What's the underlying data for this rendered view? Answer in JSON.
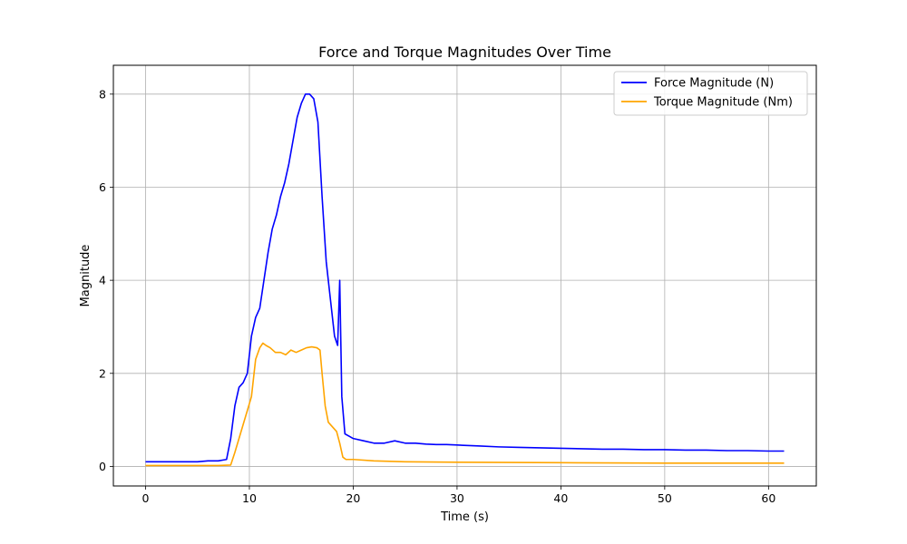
{
  "chart_data": {
    "type": "line",
    "title": "Force and Torque Magnitudes Over Time",
    "xlabel": "Time (s)",
    "ylabel": "Magnitude",
    "xlim": [
      -3.1,
      64.6
    ],
    "ylim": [
      -0.42,
      8.62
    ],
    "xticks": [
      0,
      10,
      20,
      30,
      40,
      50,
      60
    ],
    "yticks": [
      0,
      2,
      4,
      6,
      8
    ],
    "grid": true,
    "legend_position": "top-right",
    "series": [
      {
        "name": "Force Magnitude (N)",
        "color": "#0000ff",
        "x": [
          0,
          1,
          2,
          3,
          4,
          5,
          6,
          7,
          7.8,
          8.2,
          8.6,
          9.0,
          9.4,
          9.8,
          10.2,
          10.6,
          11.0,
          11.4,
          11.8,
          12.2,
          12.6,
          13.0,
          13.4,
          13.8,
          14.2,
          14.6,
          15.0,
          15.4,
          15.8,
          16.2,
          16.6,
          17.0,
          17.4,
          17.8,
          18.2,
          18.5,
          18.7,
          18.9,
          19.2,
          19.6,
          20,
          21,
          22,
          23,
          24,
          25,
          26,
          27,
          28,
          29,
          30,
          32,
          34,
          36,
          38,
          40,
          42,
          44,
          46,
          48,
          50,
          52,
          54,
          56,
          58,
          60,
          61.5
        ],
        "values": [
          0.1,
          0.1,
          0.1,
          0.1,
          0.1,
          0.1,
          0.12,
          0.12,
          0.15,
          0.6,
          1.3,
          1.7,
          1.8,
          2.0,
          2.8,
          3.2,
          3.4,
          4.0,
          4.6,
          5.1,
          5.4,
          5.8,
          6.1,
          6.5,
          7.0,
          7.5,
          7.8,
          8.0,
          8.0,
          7.9,
          7.4,
          5.8,
          4.4,
          3.6,
          2.8,
          2.6,
          4.0,
          1.5,
          0.7,
          0.65,
          0.6,
          0.55,
          0.5,
          0.5,
          0.55,
          0.5,
          0.5,
          0.48,
          0.47,
          0.47,
          0.46,
          0.44,
          0.42,
          0.41,
          0.4,
          0.39,
          0.38,
          0.37,
          0.37,
          0.36,
          0.36,
          0.35,
          0.35,
          0.34,
          0.34,
          0.33,
          0.33
        ]
      },
      {
        "name": "Torque Magnitude (Nm)",
        "color": "#ffa500",
        "x": [
          0,
          2,
          4,
          6,
          7,
          8.2,
          8.6,
          9.0,
          9.4,
          9.8,
          10.2,
          10.6,
          11.0,
          11.3,
          11.6,
          12.0,
          12.5,
          13.0,
          13.5,
          14.0,
          14.5,
          15.0,
          15.5,
          16.0,
          16.5,
          16.8,
          17.0,
          17.3,
          17.6,
          18.0,
          18.4,
          18.7,
          19.0,
          19.3,
          20,
          22,
          25,
          30,
          40,
          50,
          61.5
        ],
        "values": [
          0.02,
          0.02,
          0.02,
          0.02,
          0.02,
          0.03,
          0.3,
          0.6,
          0.9,
          1.2,
          1.5,
          2.3,
          2.55,
          2.65,
          2.6,
          2.55,
          2.45,
          2.45,
          2.4,
          2.5,
          2.45,
          2.5,
          2.55,
          2.57,
          2.55,
          2.5,
          2.0,
          1.3,
          0.95,
          0.85,
          0.75,
          0.5,
          0.2,
          0.15,
          0.15,
          0.12,
          0.1,
          0.09,
          0.08,
          0.07,
          0.07
        ]
      }
    ]
  }
}
